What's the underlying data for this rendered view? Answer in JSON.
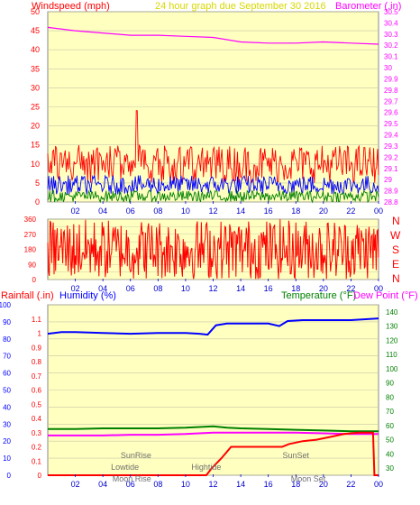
{
  "colors": {
    "background": "#ffffff",
    "plot_bg": "#ffffc0",
    "grid": "#c8c8a8",
    "wind_axis": "#ff0000",
    "baro_axis": "#ff00ff",
    "time_axis": "#0000cc",
    "humidity": "#0000ff",
    "temp": "#008000",
    "dewpoint": "#ff00ff",
    "rain": "#ff0000",
    "gust": "#ff0000",
    "avg_wind": "#0000ff",
    "wind_low": "#008000",
    "direction": "#ff0000",
    "title": "#d8d800",
    "event_text": "#707070"
  },
  "header": {
    "wind_label": "Windspeed (mph)",
    "title": "24 hour graph due   September 30 2016",
    "baro_label": "Barometer (.in)"
  },
  "dir_panel": {
    "compass": [
      "N",
      "W",
      "S",
      "E",
      "N"
    ]
  },
  "bottom_panel": {
    "rain_label": "Rainfall (.in)",
    "humidity_label": "Humidity (%)",
    "temp_label": "Temperature (°F)",
    "dew_label": "Dew Point (°F)"
  },
  "events": [
    {
      "label": "SunRise",
      "hour": 6.4,
      "row": 0
    },
    {
      "label": "Lowtide",
      "hour": 5.6,
      "row": 1
    },
    {
      "label": "Moon Rise",
      "hour": 6.1,
      "row": 2
    },
    {
      "label": "Hightide",
      "hour": 11.5,
      "row": 1
    },
    {
      "label": "SunSet",
      "hour": 18.0,
      "row": 0
    },
    {
      "label": "Moon Set",
      "hour": 18.9,
      "row": 2
    }
  ],
  "chart_data": [
    {
      "type": "line",
      "title": "24 hour graph due   September 30 2016",
      "x_tick_labels": [
        "02",
        "04",
        "06",
        "08",
        "10",
        "12",
        "14",
        "16",
        "18",
        "20",
        "22",
        "00"
      ],
      "xlim_hours": [
        0,
        24
      ],
      "left_axis": {
        "label": "Windspeed (mph)",
        "ylim": [
          0,
          50
        ],
        "ticks": [
          0,
          5,
          10,
          15,
          20,
          25,
          30,
          35,
          40,
          45,
          50
        ]
      },
      "right_axis": {
        "label": "Barometer (.in)",
        "ylim": [
          28.8,
          30.5
        ],
        "ticks": [
          "28.8",
          "28.9",
          "29",
          "29.1",
          "29.2",
          "29.3",
          "29.4",
          "29.5",
          "29.6",
          "29.7",
          "29.8",
          "29.9",
          "30",
          "30.1",
          "30.2",
          "30.3",
          "30.4",
          "30.5"
        ]
      },
      "series": [
        {
          "name": "Barometer (.in)",
          "axis": "right",
          "hours": [
            0,
            2,
            4,
            6,
            8,
            10,
            12,
            14,
            16,
            18,
            20,
            22,
            24
          ],
          "values": [
            30.36,
            30.33,
            30.31,
            30.29,
            30.29,
            30.28,
            30.27,
            30.23,
            30.22,
            30.22,
            30.23,
            30.22,
            30.21
          ]
        },
        {
          "name": "Gust",
          "axis": "left",
          "typical_range": [
            5,
            15
          ],
          "peak": 24
        },
        {
          "name": "Average",
          "axis": "left",
          "typical_range": [
            2,
            7
          ]
        },
        {
          "name": "Low",
          "axis": "left",
          "typical_range": [
            0,
            3
          ]
        }
      ]
    },
    {
      "type": "line",
      "x_tick_labels": [
        "02",
        "04",
        "06",
        "08",
        "10",
        "12",
        "14",
        "16",
        "18",
        "20",
        "22",
        "00"
      ],
      "xlim_hours": [
        0,
        24
      ],
      "left_axis": {
        "ylim": [
          0,
          360
        ],
        "ticks": [
          0,
          45,
          90,
          135,
          180,
          225,
          270,
          315,
          360
        ]
      },
      "series": [
        {
          "name": "Wind direction",
          "typical_range": [
            0,
            360
          ]
        }
      ]
    },
    {
      "type": "line",
      "x_tick_labels": [
        "02",
        "04",
        "06",
        "08",
        "10",
        "12",
        "14",
        "16",
        "18",
        "20",
        "22",
        "00"
      ],
      "xlim_hours": [
        0,
        24
      ],
      "humidity_axis": {
        "label": "Humidity (%)",
        "ylim": [
          0,
          100
        ],
        "ticks": [
          0,
          10,
          20,
          30,
          40,
          50,
          60,
          70,
          80,
          90,
          100
        ]
      },
      "rain_axis": {
        "label": "Rainfall (.in)",
        "ylim": [
          0,
          1.2
        ],
        "ticks": [
          "0",
          "0.1",
          "0.2",
          "0.3",
          "0.4",
          "0.5",
          "0.6",
          "0.7",
          "0.8",
          "0.9",
          "1",
          "1.1"
        ]
      },
      "temp_axis": {
        "label": "Temperature (°F)",
        "ylim": [
          25,
          145
        ],
        "ticks": [
          30,
          40,
          50,
          60,
          70,
          80,
          90,
          100,
          110,
          120,
          130,
          140
        ]
      },
      "series": [
        {
          "name": "Humidity (%)",
          "axis": "humidity",
          "hours": [
            0,
            1,
            2,
            4,
            6,
            8,
            10,
            11,
            11.6,
            12.2,
            13,
            14,
            16,
            16.8,
            17.4,
            18.5,
            20,
            22,
            24
          ],
          "values": [
            83,
            84,
            84,
            83.5,
            83,
            83.5,
            83.5,
            83,
            82.5,
            88,
            89,
            89,
            89,
            87.5,
            90.5,
            91,
            91,
            91,
            92
          ]
        },
        {
          "name": "Temperature (°F)",
          "axis": "temp",
          "hours": [
            0,
            2,
            4,
            6,
            8,
            10,
            12,
            13,
            14,
            16,
            18,
            20,
            22,
            24
          ],
          "values": [
            57.5,
            57.5,
            58,
            58,
            58,
            58.5,
            59.5,
            58.5,
            58,
            57.5,
            57,
            56.5,
            56,
            56
          ]
        },
        {
          "name": "Dew Point (°F)",
          "axis": "temp",
          "hours": [
            0,
            2,
            4,
            6,
            8,
            10,
            12,
            14,
            16,
            18,
            20,
            22,
            24
          ],
          "values": [
            53,
            53,
            53,
            53.5,
            53.5,
            54,
            55,
            55,
            55,
            55,
            54.5,
            54,
            54
          ]
        },
        {
          "name": "Rainfall (.in)",
          "axis": "rain",
          "hours": [
            0,
            11.5,
            11.9,
            12.6,
            13.3,
            14,
            15,
            16,
            17,
            17.5,
            18.5,
            19.5,
            20.5,
            21.5,
            22.5,
            23.6,
            23.7,
            24
          ],
          "values": [
            0,
            0,
            0.05,
            0.12,
            0.2,
            0.2,
            0.2,
            0.2,
            0.2,
            0.22,
            0.24,
            0.25,
            0.27,
            0.29,
            0.3,
            0.3,
            0,
            0
          ]
        }
      ]
    }
  ]
}
